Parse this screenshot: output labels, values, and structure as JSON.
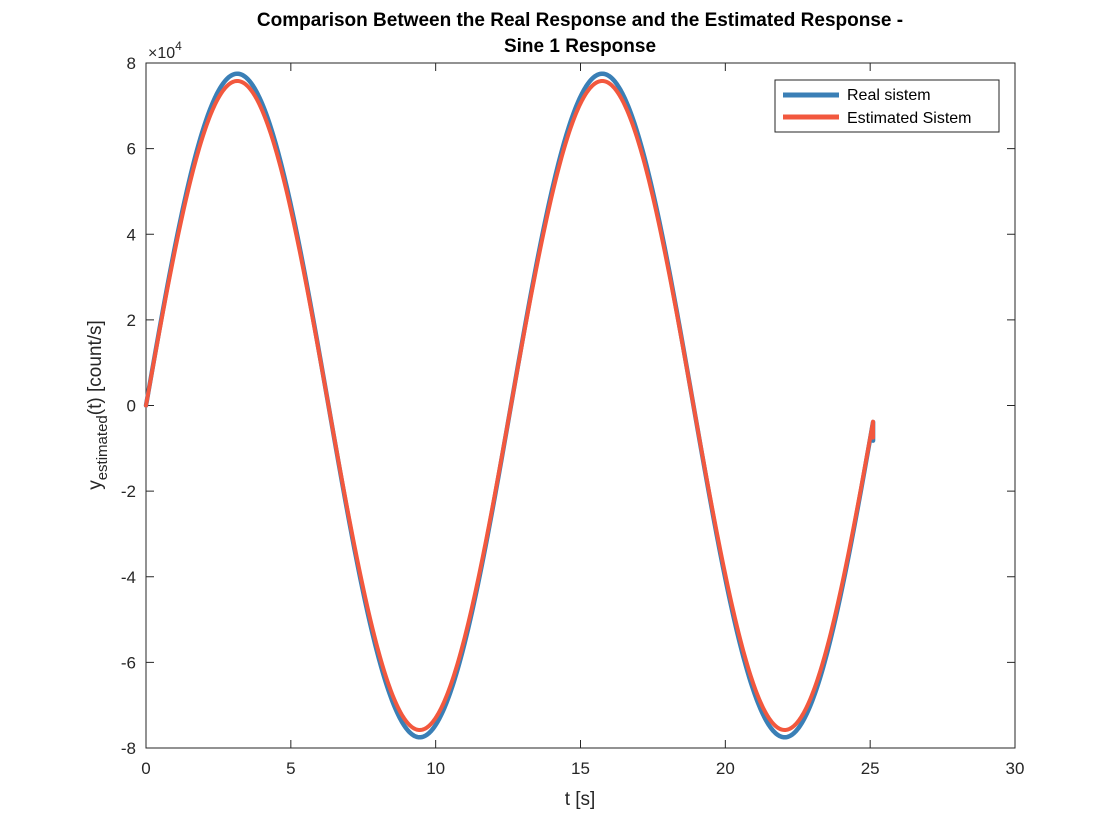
{
  "chart_data": {
    "type": "line",
    "title_lines": [
      "Comparison Between the Real Response and the Estimated Response -",
      "Sine 1 Response"
    ],
    "xlabel": "t [s]",
    "ylabel_main": "y",
    "ylabel_sub": "estimated",
    "ylabel_rest": "(t) [count/s]",
    "xlim": [
      0,
      30
    ],
    "ylim": [
      -80000,
      80000
    ],
    "y_exponent_base": "×10",
    "y_exponent_power": "4",
    "xticks": [
      0,
      5,
      10,
      15,
      20,
      25,
      30
    ],
    "xtick_labels": [
      "0",
      "5",
      "10",
      "15",
      "20",
      "25",
      "30"
    ],
    "yticks": [
      -80000,
      -60000,
      -40000,
      -20000,
      0,
      20000,
      40000,
      60000,
      80000
    ],
    "ytick_labels": [
      "-8",
      "-6",
      "-4",
      "-2",
      "0",
      "2",
      "4",
      "6",
      "8"
    ],
    "grid": false,
    "legend_position": "top-right",
    "series": [
      {
        "name": "Real sistem",
        "color": "#3a7fb6",
        "amplitude": 77500,
        "period": 12.6,
        "t_end": 25.1,
        "x": [
          0,
          0.5,
          1,
          1.5,
          2,
          2.5,
          3,
          3.3,
          3.5,
          4,
          4.5,
          5,
          5.5,
          6,
          6.5,
          7,
          7.5,
          8,
          8.5,
          9,
          9.5,
          9.7,
          10,
          10.5,
          11,
          11.5,
          12,
          12.5,
          13,
          13.5,
          14,
          14.5,
          15,
          15.5,
          15.8,
          16,
          16.5,
          17,
          17.5,
          18,
          18.5,
          19,
          19.5,
          20,
          20.5,
          21,
          21.5,
          22,
          22.3,
          22.5,
          23,
          23.5,
          24,
          24.5,
          25,
          25.1
        ],
        "y": [
          0,
          19000,
          36500,
          52000,
          64500,
          73400,
          77300,
          77500,
          77000,
          71500,
          61000,
          46500,
          29300,
          11300,
          -7400,
          -25500,
          -42700,
          -57200,
          -68700,
          -75600,
          -77500,
          -77400,
          -75900,
          -69700,
          -58400,
          -43800,
          -26700,
          -8100,
          10800,
          28800,
          45300,
          59600,
          70200,
          76700,
          77500,
          77300,
          73400,
          64500,
          52000,
          36500,
          19000,
          600,
          -17800,
          -35400,
          -51100,
          -63800,
          -72900,
          -77200,
          -77500,
          -77100,
          -72000,
          -61700,
          -47200,
          -30200,
          -12000,
          -8200
        ]
      },
      {
        "name": "Estimated Sistem",
        "color": "#f2583e",
        "amplitude": 75800,
        "period": 12.6,
        "t_end": 25.1,
        "x": [
          0,
          0.5,
          1,
          1.5,
          2,
          2.5,
          3,
          3.3,
          3.5,
          4,
          4.5,
          5,
          5.5,
          6,
          6.5,
          7,
          7.5,
          8,
          8.5,
          9,
          9.5,
          9.7,
          10,
          10.5,
          11,
          11.5,
          12,
          12.5,
          13,
          13.5,
          14,
          14.5,
          15,
          15.5,
          15.8,
          16,
          16.5,
          17,
          17.5,
          18,
          18.5,
          19,
          19.5,
          20,
          20.5,
          21,
          21.5,
          22,
          22.3,
          22.5,
          23,
          23.5,
          24,
          24.5,
          25,
          25.1
        ],
        "y": [
          0,
          18600,
          35700,
          50900,
          63100,
          71800,
          75600,
          75800,
          75300,
          69900,
          59700,
          45500,
          28700,
          11100,
          -7200,
          -24900,
          -41800,
          -55900,
          -67200,
          -73900,
          -75800,
          -75700,
          -74200,
          -68200,
          -57100,
          -42800,
          -26100,
          -7900,
          10600,
          28200,
          44300,
          58300,
          68700,
          75000,
          75800,
          75600,
          71800,
          63100,
          50900,
          35700,
          18600,
          600,
          -17400,
          -34600,
          -50000,
          -62400,
          -71300,
          -75500,
          -75800,
          -75400,
          -70400,
          -60300,
          -46200,
          -29500,
          -11700,
          -7500
        ]
      }
    ]
  }
}
